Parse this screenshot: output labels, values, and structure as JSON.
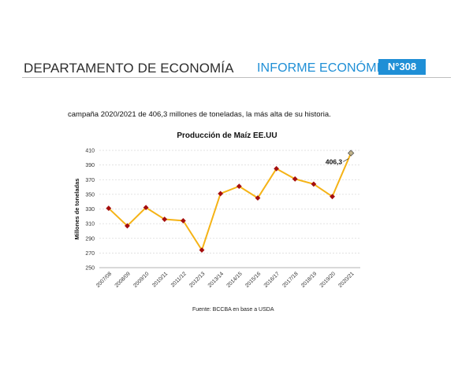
{
  "header": {
    "department": "DEPARTAMENTO DE ECONOMÍA",
    "report": "INFORME ECONÓMICO",
    "number": "N°308"
  },
  "intro_text": "campaña 2020/2021 de 406,3 millones de toneladas, la más alta de su historia.",
  "chart_data": {
    "type": "line",
    "title": "Producción de Maíz EE.UU",
    "xlabel": "",
    "ylabel": "Millones de toneladas",
    "categories": [
      "2007/08",
      "2008/09",
      "2009/10",
      "2010/11",
      "2011/12",
      "2012/13",
      "2013/14",
      "2014/15",
      "2015/16",
      "2016/17",
      "2017/18",
      "2018/19",
      "2019/20",
      "2020/21"
    ],
    "series": [
      {
        "values": [
          331,
          307,
          332,
          316,
          314,
          274,
          351,
          361,
          345,
          385,
          371,
          364,
          347,
          406.3
        ]
      }
    ],
    "ylim": [
      250,
      410
    ],
    "yticks": [
      250,
      270,
      290,
      310,
      330,
      350,
      370,
      390,
      410
    ],
    "grid": true,
    "annotation": {
      "text": "406,3",
      "index": 13
    },
    "colors": {
      "line": "#f5b316",
      "marker": "#a50e0e",
      "last_marker": "#c2b48a",
      "grid": "#d9d9d9"
    }
  },
  "source": "Fuente: BCCBA en base a USDA"
}
